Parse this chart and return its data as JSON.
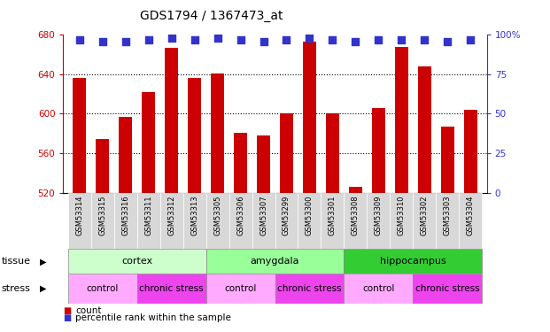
{
  "title": "GDS1794 / 1367473_at",
  "samples": [
    "GSM53314",
    "GSM53315",
    "GSM53316",
    "GSM53311",
    "GSM53312",
    "GSM53313",
    "GSM53305",
    "GSM53306",
    "GSM53307",
    "GSM53299",
    "GSM53300",
    "GSM53301",
    "GSM53308",
    "GSM53309",
    "GSM53310",
    "GSM53302",
    "GSM53303",
    "GSM53304"
  ],
  "counts": [
    636,
    574,
    597,
    622,
    667,
    636,
    641,
    581,
    578,
    600,
    673,
    600,
    526,
    606,
    668,
    648,
    587,
    604
  ],
  "percentiles": [
    97,
    96,
    96,
    97,
    98,
    97,
    98,
    97,
    96,
    97,
    98,
    97,
    96,
    97,
    97,
    97,
    96,
    97
  ],
  "bar_color": "#cc0000",
  "dot_color": "#3333cc",
  "ymin": 520,
  "ymax": 680,
  "yticks": [
    520,
    560,
    600,
    640,
    680
  ],
  "y2min": 0,
  "y2max": 100,
  "y2ticks": [
    0,
    25,
    50,
    75,
    100
  ],
  "tissue_groups": [
    {
      "label": "cortex",
      "start": 0,
      "end": 5,
      "color": "#ccffcc"
    },
    {
      "label": "amygdala",
      "start": 6,
      "end": 11,
      "color": "#99ff99"
    },
    {
      "label": "hippocampus",
      "start": 12,
      "end": 17,
      "color": "#33cc33"
    }
  ],
  "stress_groups": [
    {
      "label": "control",
      "start": 0,
      "end": 2,
      "color": "#ffaaff"
    },
    {
      "label": "chronic stress",
      "start": 3,
      "end": 5,
      "color": "#ee44ee"
    },
    {
      "label": "control",
      "start": 6,
      "end": 8,
      "color": "#ffaaff"
    },
    {
      "label": "chronic stress",
      "start": 9,
      "end": 11,
      "color": "#ee44ee"
    },
    {
      "label": "control",
      "start": 12,
      "end": 14,
      "color": "#ffaaff"
    },
    {
      "label": "chronic stress",
      "start": 15,
      "end": 17,
      "color": "#ee44ee"
    }
  ],
  "bg_color": "#ffffff",
  "plot_bg_color": "#ffffff",
  "xtick_bg_color": "#d8d8d8",
  "tick_label_color": "#cc0000",
  "y2_label_color": "#3333cc",
  "bar_width": 0.6,
  "dot_size": 40,
  "dot_marker": "s"
}
